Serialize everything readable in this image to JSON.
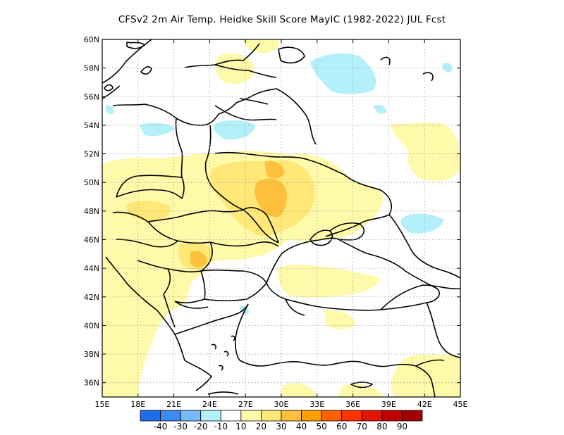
{
  "title": "CFSv2  2m Air Temp. Heidke Skill Score MayIC (1982-2022) JUL Fcst",
  "map": {
    "lon_ticks": [
      "15E",
      "18E",
      "21E",
      "24E",
      "27E",
      "30E",
      "33E",
      "36E",
      "39E",
      "42E",
      "45E"
    ],
    "lat_ticks": [
      "60N",
      "58N",
      "56N",
      "54N",
      "52N",
      "50N",
      "48N",
      "46N",
      "44N",
      "42N",
      "40N",
      "38N",
      "36N"
    ],
    "lon_range": [
      15,
      45
    ],
    "lat_range": [
      35,
      60
    ],
    "gridlines": true,
    "projection": "latitude-longitude"
  },
  "colorbar": {
    "labels": [
      "-40",
      "-30",
      "-20",
      "-10",
      "10",
      "20",
      "30",
      "40",
      "50",
      "60",
      "70",
      "80",
      "90"
    ],
    "colors": [
      "#1e6eeb",
      "#3a8cf0",
      "#78b9fa",
      "#b4f0fa",
      "#ffffff",
      "#fffaaa",
      "#ffe878",
      "#ffc03c",
      "#ffa000",
      "#ff6000",
      "#ff3200",
      "#e11400",
      "#c00000",
      "#a50000"
    ]
  }
}
